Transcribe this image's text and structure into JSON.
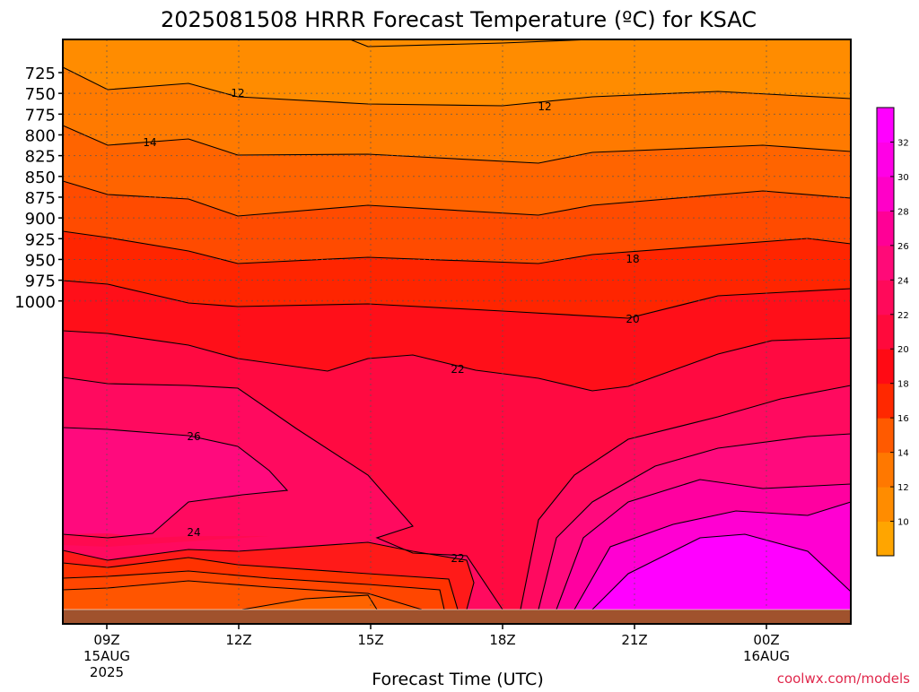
{
  "title": "2025081508 HRRR Forecast Temperature (ºC) for KSAC",
  "xlabel": "Forecast Time (UTC)",
  "credit": "coolwx.com/models",
  "x_ticks": [
    {
      "label": "09Z",
      "sub1": "15AUG",
      "sub2": "2025"
    },
    {
      "label": "12Z",
      "sub1": "",
      "sub2": ""
    },
    {
      "label": "15Z",
      "sub1": "",
      "sub2": ""
    },
    {
      "label": "18Z",
      "sub1": "",
      "sub2": ""
    },
    {
      "label": "21Z",
      "sub1": "",
      "sub2": ""
    },
    {
      "label": "00Z",
      "sub1": "16AUG",
      "sub2": ""
    }
  ],
  "y_ticks": [
    "725",
    "750",
    "775",
    "800",
    "825",
    "850",
    "875",
    "900",
    "925",
    "950",
    "975",
    "1000"
  ],
  "colorbar": {
    "labels": [
      "10",
      "12",
      "14",
      "16",
      "18",
      "20",
      "22",
      "24",
      "26",
      "28",
      "30",
      "32"
    ],
    "colors": [
      "#ffa500",
      "#ff8c00",
      "#ff7800",
      "#ff5a00",
      "#ff2800",
      "#ff0a14",
      "#ff0a3c",
      "#ff0a5a",
      "#ff0a78",
      "#ff0096",
      "#ff00c8",
      "#ff00e6",
      "#ff00ff"
    ]
  },
  "chart_data": {
    "type": "heatmap",
    "title": "2025081508 HRRR Forecast Temperature (ºC) for KSAC",
    "xlabel": "Forecast Time (UTC)",
    "ylabel": "",
    "x": [
      "09Z 15AUG",
      "12Z",
      "15Z",
      "18Z",
      "21Z",
      "00Z 16AUG"
    ],
    "y": [
      1000,
      975,
      950,
      925,
      900,
      875,
      850,
      825,
      800,
      775,
      750,
      725
    ],
    "y_units": "hPa",
    "values_units": "ºC",
    "contour_interval": 2,
    "contour_labels": [
      12,
      12,
      14,
      18,
      20,
      22,
      26,
      24,
      22
    ],
    "colorbar_range": [
      9,
      33
    ],
    "values": [
      [
        17,
        17,
        18,
        22,
        28,
        32
      ],
      [
        23,
        22,
        21,
        22,
        26,
        30
      ],
      [
        25,
        25,
        24,
        23,
        25,
        27
      ],
      [
        26,
        25,
        24,
        23,
        24,
        25
      ],
      [
        25,
        24,
        23,
        23,
        23,
        24
      ],
      [
        23,
        22,
        22,
        22,
        22,
        22
      ],
      [
        21,
        21,
        20,
        20,
        20,
        21
      ],
      [
        19,
        18,
        18,
        18,
        18,
        19
      ],
      [
        17,
        16,
        16,
        16,
        16,
        17
      ],
      [
        15,
        14,
        14,
        14,
        14,
        15
      ],
      [
        13,
        13,
        13,
        13,
        13,
        13
      ],
      [
        12,
        11,
        11,
        11,
        11,
        11
      ]
    ]
  }
}
